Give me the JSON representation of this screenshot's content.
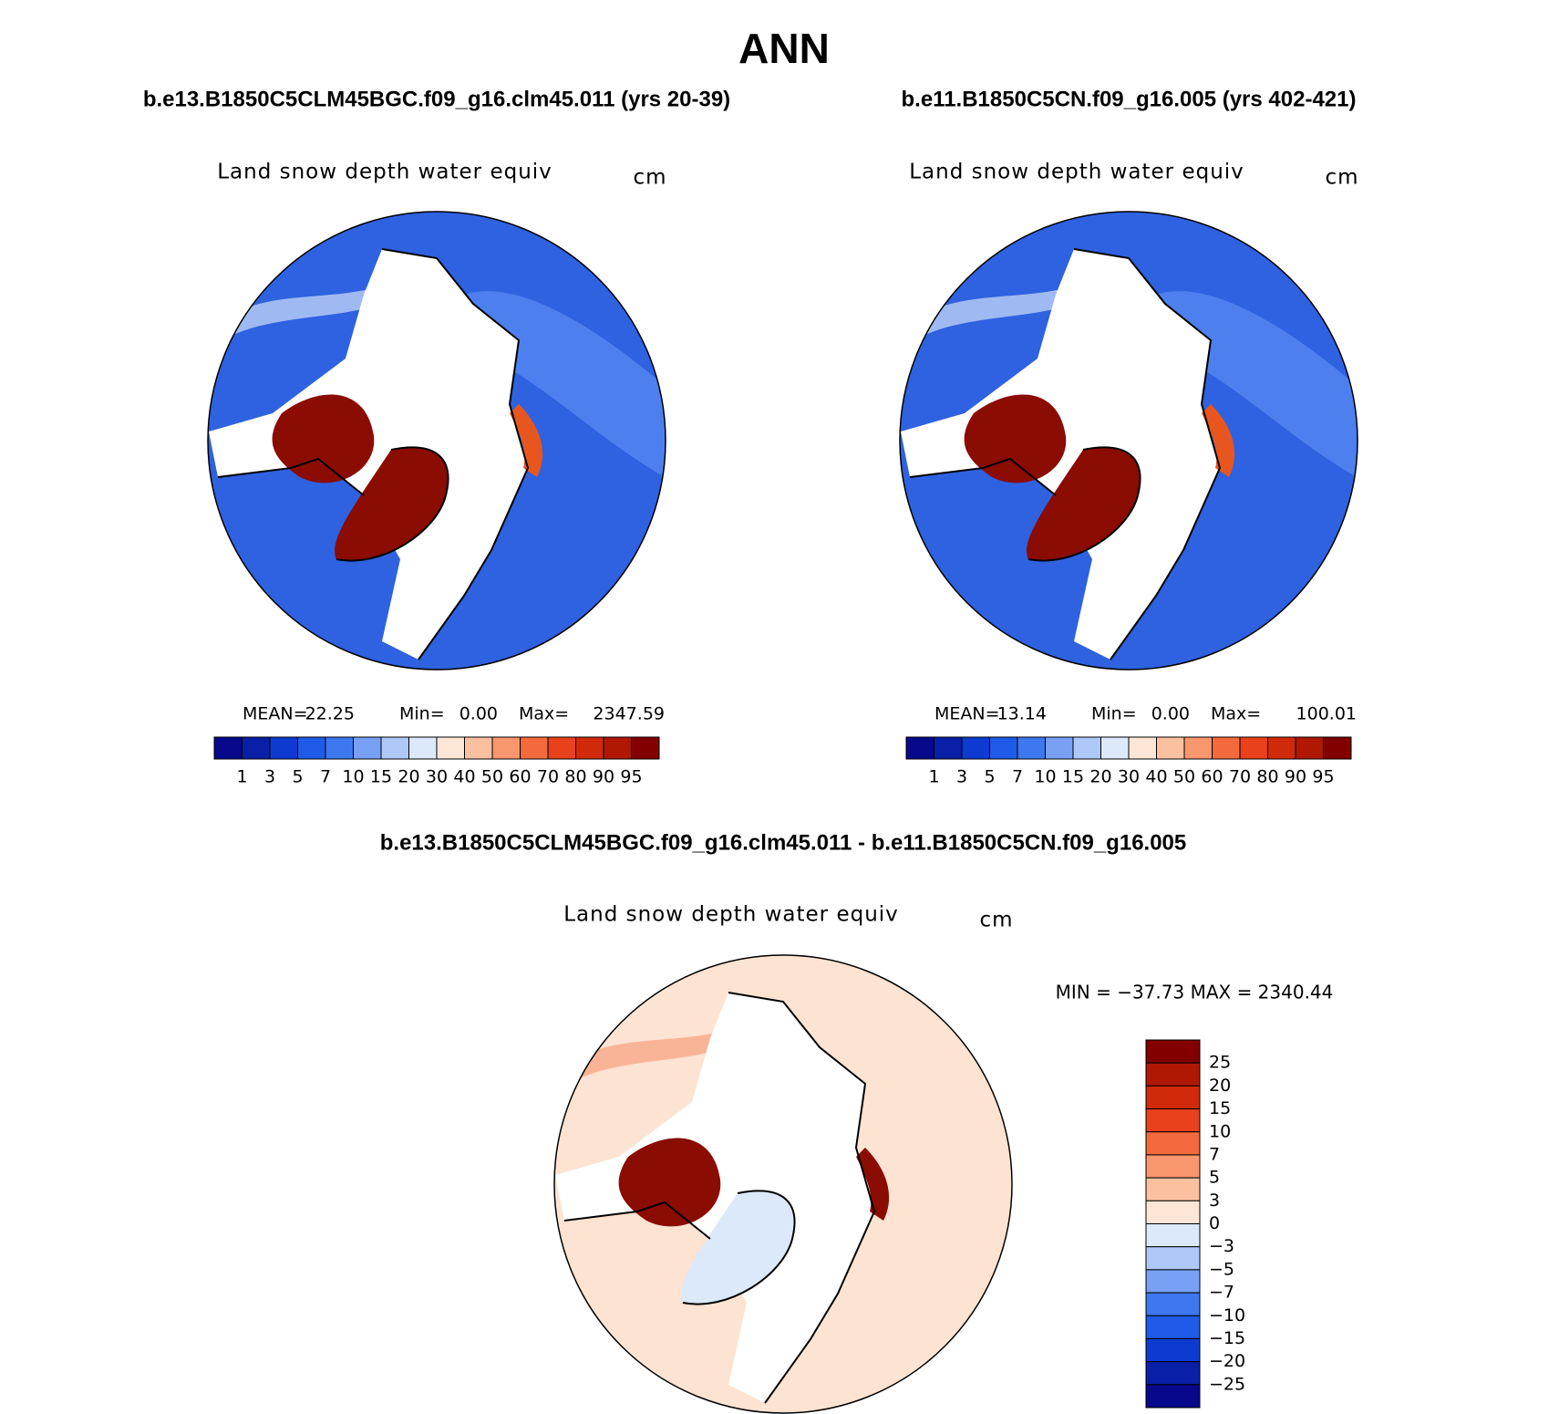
{
  "title": "ANN",
  "panels": [
    {
      "subtitle": "b.e13.B1850C5CLM45BGC.f09_g16.clm45.011 (yrs 20-39)",
      "variable": "Land snow depth water equiv",
      "units": "cm",
      "mean_label": "MEAN=",
      "mean": "22.25",
      "min_label": "Min=",
      "min": "0.00",
      "max_label": "Max=",
      "max": "2347.59"
    },
    {
      "subtitle": "b.e11.B1850C5CN.f09_g16.005 (yrs 402-421)",
      "variable": "Land snow depth water equiv",
      "units": "cm",
      "mean_label": "MEAN=",
      "mean": "13.14",
      "min_label": "Min=",
      "min": "0.00",
      "max_label": "Max=",
      "max": "100.01"
    }
  ],
  "colorbar": {
    "colors": [
      "#08088c",
      "#0a1fa8",
      "#0d3ad0",
      "#1f5ae8",
      "#3d78f0",
      "#78a0f5",
      "#aec8f8",
      "#dbe9fb",
      "#fde6d6",
      "#fbc0a0",
      "#f8966e",
      "#f46a3c",
      "#e8411c",
      "#d12a0a",
      "#b01804",
      "#820000"
    ],
    "labels": [
      "1",
      "3",
      "5",
      "7",
      "10",
      "15",
      "20",
      "30",
      "40",
      "50",
      "60",
      "70",
      "80",
      "90",
      "95"
    ]
  },
  "difference": {
    "subtitle": "b.e13.B1850C5CLM45BGC.f09_g16.clm45.011 - b.e11.B1850C5CN.f09_g16.005",
    "variable": "Land snow depth water equiv",
    "units": "cm",
    "range_text": "MIN = −37.73 MAX = 2340.44",
    "colorbar": {
      "colors": [
        "#820000",
        "#b01804",
        "#d12a0a",
        "#e8411c",
        "#f46a3c",
        "#f8966e",
        "#fbc0a0",
        "#fde6d6",
        "#dbe9fb",
        "#aec8f8",
        "#78a0f5",
        "#3d78f0",
        "#1f5ae8",
        "#0d3ad0",
        "#0a1fa8",
        "#08088c"
      ],
      "labels": [
        "25",
        "20",
        "15",
        "10",
        "7",
        "5",
        "3",
        "0",
        "−3",
        "−5",
        "−7",
        "−10",
        "−15",
        "−20",
        "−25"
      ]
    }
  }
}
